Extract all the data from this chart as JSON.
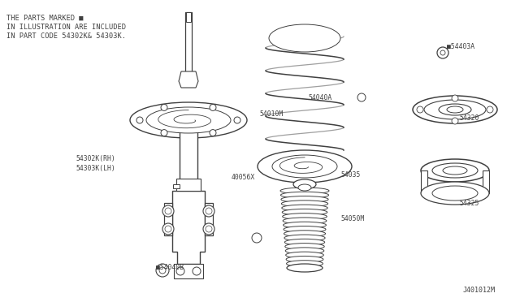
{
  "bg_color": "#ffffff",
  "line_color": "#404040",
  "note_lines": [
    "THE PARTS MARKED ■",
    "IN ILLUSTRATION ARE INCLUDED",
    "IN PART CODE 54302K& 54303K."
  ],
  "diagram_id": "J401012M",
  "fig_w": 6.4,
  "fig_h": 3.72,
  "dpi": 100
}
